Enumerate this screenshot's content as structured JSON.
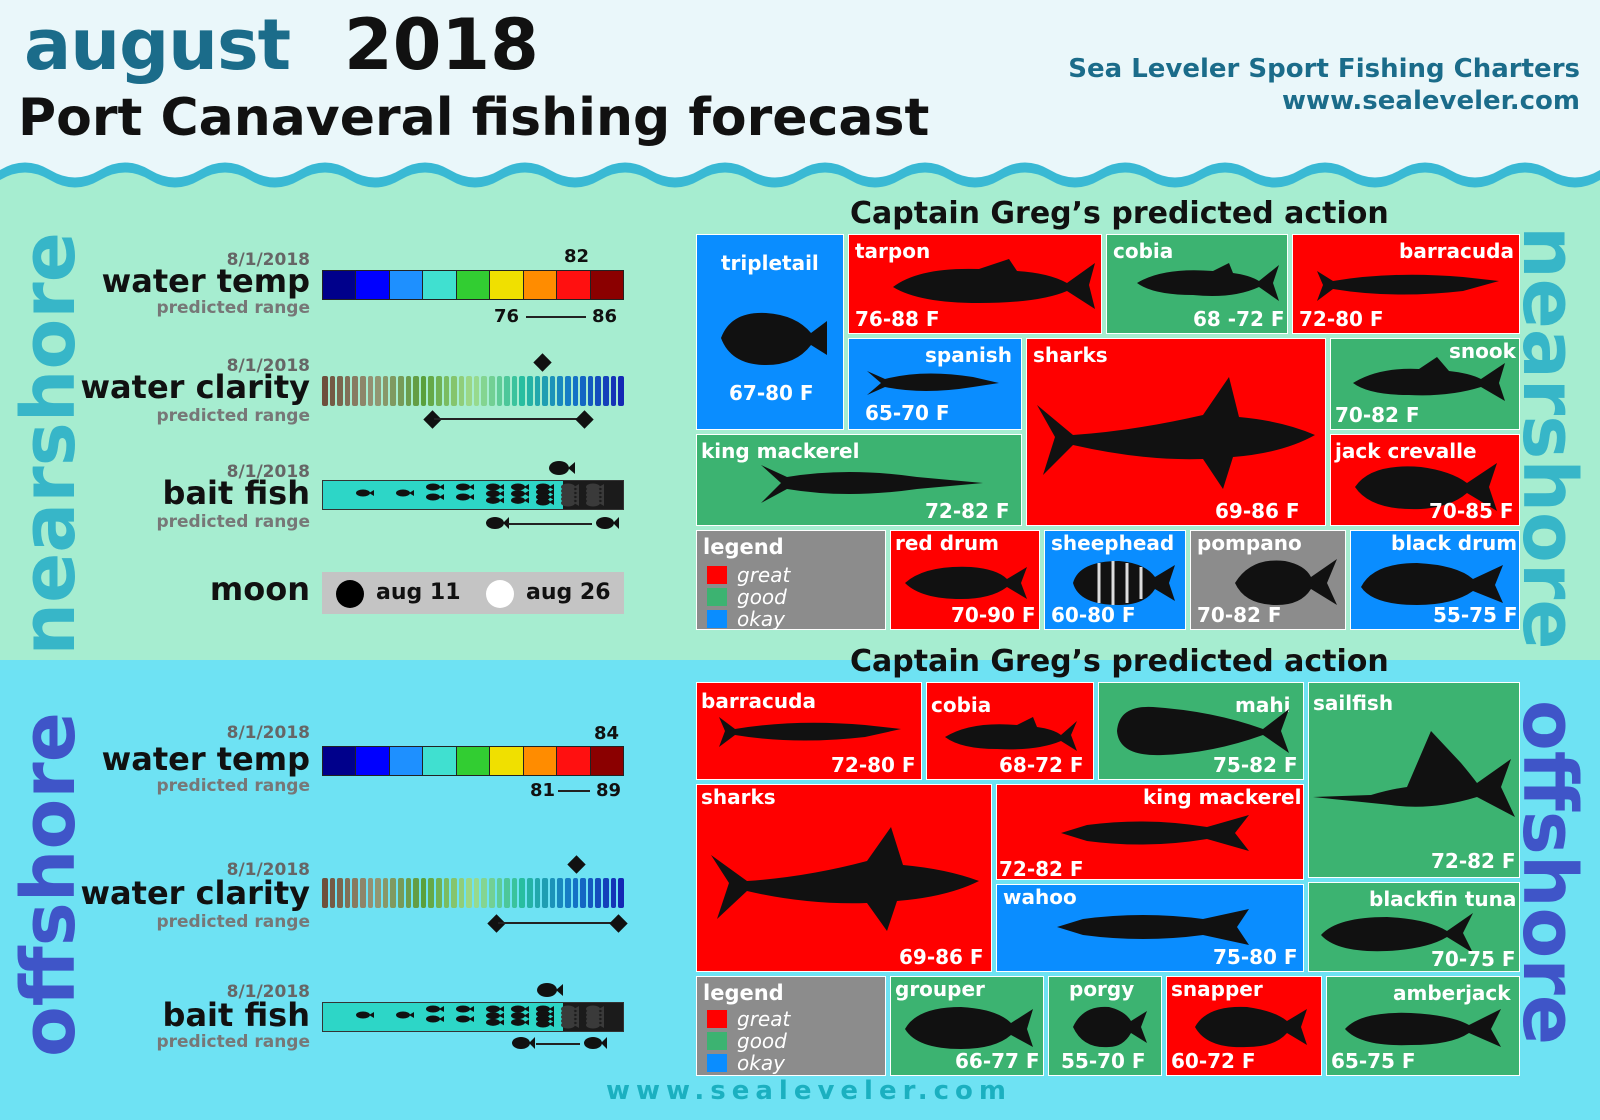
{
  "header": {
    "month": "august",
    "year": "2018",
    "subtitle": "Port Canaveral fishing forecast",
    "brand_name": "Sea Leveler Sport Fishing Charters",
    "brand_url": "www.sealeveler.com"
  },
  "colors": {
    "great": "#ff0000",
    "good": "#3cb371",
    "okay": "#0a8dff",
    "nearshore_bg": "#a6edd0",
    "offshore_bg": "#6ee2f3"
  },
  "nearshore": {
    "side_label": "nearshore",
    "water_temp": {
      "date": "8/1/2018",
      "title": "water temp",
      "sub": "predicted range",
      "current": "82",
      "range_low": "76",
      "range_high": "86"
    },
    "water_clarity": {
      "date": "8/1/2018",
      "title": "water clarity",
      "sub": "predicted range"
    },
    "bait_fish": {
      "date": "8/1/2018",
      "title": "bait fish",
      "sub": "predicted range"
    },
    "moon": {
      "label": "moon",
      "new_date": "aug 11",
      "full_date": "aug 26"
    },
    "action_title": "Captain Greg’s predicted action",
    "legend": {
      "title": "legend",
      "great": "great",
      "good": "good",
      "okay": "okay"
    },
    "fish": [
      {
        "name": "tripletail",
        "range": "67-80 F",
        "rating": "okay",
        "icon": "tripletail-icon"
      },
      {
        "name": "tarpon",
        "range": "76-88 F",
        "rating": "great",
        "icon": "tarpon-icon"
      },
      {
        "name": "cobia",
        "range": "68 -72 F",
        "rating": "good",
        "icon": "cobia-icon"
      },
      {
        "name": "barracuda",
        "range": "72-80 F",
        "rating": "great",
        "icon": "barracuda-icon"
      },
      {
        "name": "spanish",
        "range": "65-70 F",
        "rating": "okay",
        "icon": "spanish-mackerel-icon"
      },
      {
        "name": "sharks",
        "range": "69-86 F",
        "rating": "great",
        "icon": "shark-icon"
      },
      {
        "name": "snook",
        "range": "70-82 F",
        "rating": "good",
        "icon": "snook-icon"
      },
      {
        "name": "king mackerel",
        "range": "72-82 F",
        "rating": "good",
        "icon": "king-mackerel-icon"
      },
      {
        "name": "jack crevalle",
        "range": "70-85 F",
        "rating": "great",
        "icon": "jack-crevalle-icon"
      },
      {
        "name": "red drum",
        "range": "70-90 F",
        "rating": "great",
        "icon": "red-drum-icon"
      },
      {
        "name": "sheephead",
        "range": "60-80 F",
        "rating": "okay",
        "icon": "sheephead-icon"
      },
      {
        "name": "pompano",
        "range": "70-82 F",
        "rating": "none",
        "icon": "pompano-icon"
      },
      {
        "name": "black drum",
        "range": "55-75 F",
        "rating": "okay",
        "icon": "black-drum-icon"
      }
    ]
  },
  "offshore": {
    "side_label": "offshore",
    "water_temp": {
      "date": "8/1/2018",
      "title": "water temp",
      "sub": "predicted range",
      "current": "84",
      "range_low": "81",
      "range_high": "89"
    },
    "water_clarity": {
      "date": "8/1/2018",
      "title": "water clarity",
      "sub": "predicted range"
    },
    "bait_fish": {
      "date": "8/1/2018",
      "title": "bait fish",
      "sub": "predicted range"
    },
    "action_title": "Captain Greg’s predicted action",
    "legend": {
      "title": "legend",
      "great": "great",
      "good": "good",
      "okay": "okay"
    },
    "fish": [
      {
        "name": "barracuda",
        "range": "72-80 F",
        "rating": "great",
        "icon": "barracuda-icon"
      },
      {
        "name": "cobia",
        "range": "68-72 F",
        "rating": "great",
        "icon": "cobia-icon"
      },
      {
        "name": "mahi",
        "range": "75-82 F",
        "rating": "good",
        "icon": "mahi-icon"
      },
      {
        "name": "sailfish",
        "range": "72-82 F",
        "rating": "good",
        "icon": "sailfish-icon"
      },
      {
        "name": "sharks",
        "range": "69-86 F",
        "rating": "great",
        "icon": "shark-icon"
      },
      {
        "name": "king mackerel",
        "range": "72-82 F",
        "rating": "great",
        "icon": "king-mackerel-icon"
      },
      {
        "name": "wahoo",
        "range": "75-80 F",
        "rating": "okay",
        "icon": "wahoo-icon"
      },
      {
        "name": "blackfin tuna",
        "range": "70-75 F",
        "rating": "good",
        "icon": "blackfin-tuna-icon"
      },
      {
        "name": "grouper",
        "range": "66-77 F",
        "rating": "good",
        "icon": "grouper-icon"
      },
      {
        "name": "porgy",
        "range": "55-70 F",
        "rating": "good",
        "icon": "porgy-icon"
      },
      {
        "name": "snapper",
        "range": "60-72 F",
        "rating": "great",
        "icon": "snapper-icon"
      },
      {
        "name": "amberjack",
        "range": "65-75 F",
        "rating": "good",
        "icon": "amberjack-icon"
      }
    ]
  },
  "footer": {
    "url": "www.sealeveler.com"
  }
}
